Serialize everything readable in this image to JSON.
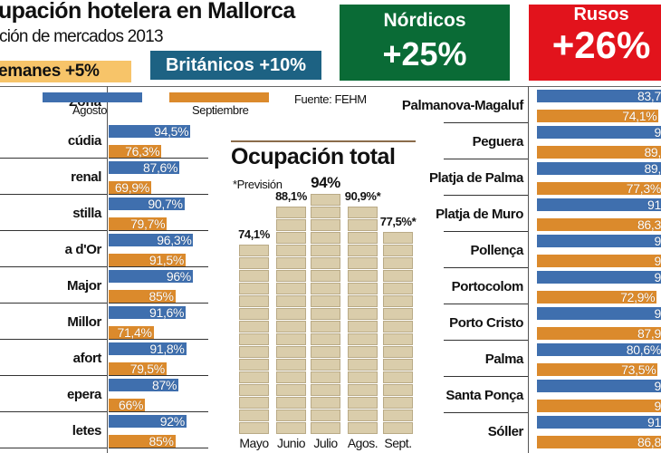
{
  "header": {
    "title": "upación hotelera en Mallorca",
    "subtitle": "ción de mercados 2013"
  },
  "markets": {
    "alemanes": "emanes +5%",
    "britanicos": "Británicos +10%",
    "nordicos_label": "Nórdicos",
    "nordicos_value": "+25%",
    "rusos_label": "Rusos",
    "rusos_value": "+26%"
  },
  "colors": {
    "agosto": "#3f6fae",
    "septiembre": "#db8a2c",
    "alemanes": "#f7c469",
    "britanicos": "#1d6283",
    "nordicos": "#0a6b36",
    "rusos": "#e2131c",
    "total_bar": "#dacdab"
  },
  "legend": {
    "zona": "Zona",
    "agosto": "Agosto",
    "septiembre": "Septiembre",
    "fuente": "Fuente: FEHM"
  },
  "chart_data": [
    {
      "type": "bar",
      "orientation": "horizontal",
      "categories": [
        "cúdia",
        "renal",
        "stilla",
        "a d'Or",
        "Major",
        "Millor",
        "afort",
        "epera",
        "letes"
      ],
      "series": [
        {
          "name": "Agosto",
          "values": [
            94.5,
            87.6,
            90.7,
            96.3,
            96,
            91.6,
            91.8,
            87,
            92
          ],
          "labels": [
            "94,5%",
            "87,6%",
            "90,7%",
            "96,3%",
            "96%",
            "91,6%",
            "91,8%",
            "87%",
            "92%"
          ]
        },
        {
          "name": "Septiembre",
          "values": [
            76.3,
            69.9,
            79.7,
            91.5,
            85,
            71.4,
            79.5,
            66,
            85
          ],
          "labels": [
            "76,3%",
            "69,9%",
            "79,7%",
            "91,5%",
            "85%",
            "71,4%",
            "79,5%",
            "66%",
            "85%"
          ]
        }
      ]
    },
    {
      "type": "bar",
      "orientation": "horizontal",
      "categories": [
        "Palmanova-Magaluf",
        "Peguera",
        "Platja de Palma",
        "Platja de Muro",
        "Pollença",
        "Portocolom",
        "Porto Cristo",
        "Palma",
        "Santa Ponça",
        "Sóller"
      ],
      "series": [
        {
          "name": "Agosto",
          "values": [
            83.7,
            null,
            89,
            91,
            null,
            null,
            null,
            80.6,
            null,
            91
          ],
          "labels": [
            "83,7",
            "9",
            "89,",
            "91",
            "9",
            "9",
            "9",
            "80,6%",
            "9",
            "91"
          ]
        },
        {
          "name": "Septiembre",
          "values": [
            74.1,
            89,
            77.3,
            86.3,
            null,
            72.9,
            87.9,
            73.5,
            null,
            86.8
          ],
          "labels": [
            "74,1%",
            "89,",
            "77,3%",
            "86,3",
            "9",
            "72,9%",
            "87,9",
            "73,5%",
            "9",
            "86,8"
          ]
        }
      ]
    },
    {
      "type": "bar",
      "title": "Ocupación total",
      "note": "*Previsión",
      "categories": [
        "Mayo",
        "Junio",
        "Julio",
        "Agos.",
        "Sept."
      ],
      "values": [
        74.1,
        88.1,
        94,
        90.9,
        77.5
      ],
      "labels": [
        "74,1%",
        "88,1%",
        "94%",
        "90,9%*",
        "77,5%*"
      ]
    }
  ]
}
